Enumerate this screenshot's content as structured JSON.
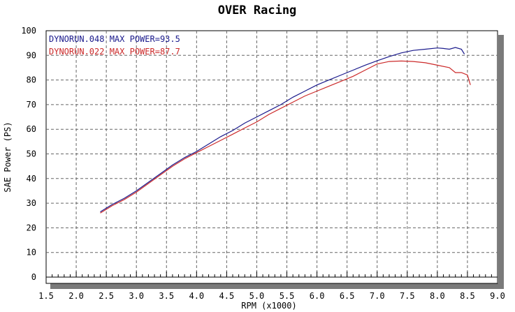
{
  "chart_data": {
    "type": "line",
    "title": "OVER Racing",
    "xlabel": "RPM (x1000)",
    "ylabel": "SAE Power (PS)",
    "xlim": [
      1.5,
      9.0
    ],
    "ylim": [
      0,
      100
    ],
    "x_ticks": [
      "1.5",
      "2.0",
      "2.5",
      "3.0",
      "3.5",
      "4.0",
      "4.5",
      "5.0",
      "5.5",
      "6.0",
      "6.5",
      "7.0",
      "7.5",
      "8.0",
      "8.5",
      "9.0"
    ],
    "y_ticks": [
      "0",
      "10",
      "20",
      "30",
      "40",
      "50",
      "60",
      "70",
      "80",
      "90",
      "100"
    ],
    "grid": true,
    "legend_position": "top-left",
    "series": [
      {
        "name": "DYNORUN.048",
        "legend_label": "DYNORUN.048  MAX POWER=93.5",
        "color": "#1a1a8c",
        "x": [
          2.4,
          2.6,
          2.8,
          3.0,
          3.2,
          3.4,
          3.6,
          3.8,
          4.0,
          4.2,
          4.4,
          4.6,
          4.8,
          5.0,
          5.2,
          5.4,
          5.6,
          5.8,
          6.0,
          6.2,
          6.4,
          6.6,
          6.8,
          7.0,
          7.2,
          7.4,
          7.6,
          7.8,
          8.0,
          8.1,
          8.2,
          8.3,
          8.4,
          8.45
        ],
        "y": [
          26.5,
          29.5,
          32.0,
          35.0,
          38.5,
          42.0,
          45.5,
          48.5,
          51.0,
          54.0,
          57.0,
          59.5,
          62.5,
          65.0,
          67.5,
          70.0,
          73.0,
          75.5,
          78.0,
          80.0,
          82.0,
          84.0,
          86.0,
          87.8,
          89.5,
          91.0,
          92.0,
          92.5,
          93.0,
          92.8,
          92.5,
          93.2,
          92.5,
          90.5
        ]
      },
      {
        "name": "DYNORUN.022",
        "legend_label": "DYNORUN.022  MAX POWER=87.7",
        "color": "#cc2a2a",
        "x": [
          2.4,
          2.6,
          2.8,
          3.0,
          3.2,
          3.4,
          3.6,
          3.8,
          4.0,
          4.2,
          4.4,
          4.6,
          4.8,
          5.0,
          5.2,
          5.4,
          5.6,
          5.8,
          6.0,
          6.2,
          6.4,
          6.6,
          6.8,
          7.0,
          7.2,
          7.4,
          7.6,
          7.8,
          8.0,
          8.2,
          8.3,
          8.4,
          8.5,
          8.55
        ],
        "y": [
          26.0,
          29.0,
          31.5,
          34.5,
          38.0,
          41.5,
          45.0,
          48.0,
          50.5,
          53.0,
          55.5,
          58.0,
          60.5,
          63.0,
          66.0,
          68.5,
          71.0,
          73.5,
          75.5,
          77.5,
          79.5,
          81.5,
          84.0,
          86.5,
          87.5,
          87.7,
          87.5,
          87.0,
          86.0,
          85.0,
          83.0,
          83.0,
          82.0,
          78.0
        ]
      }
    ]
  }
}
